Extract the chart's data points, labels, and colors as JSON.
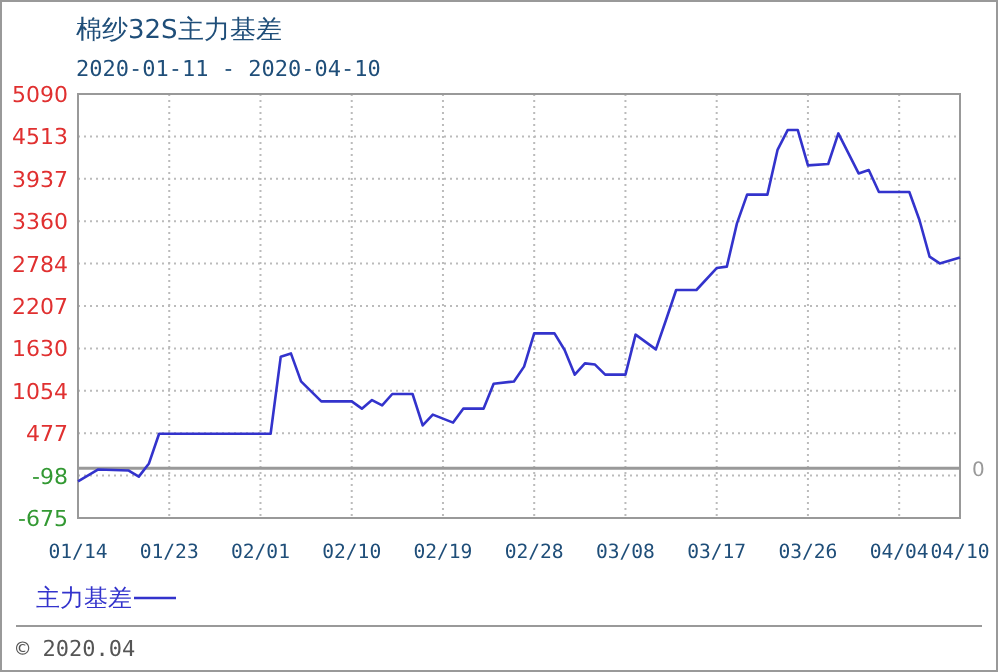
{
  "chart_data": {
    "type": "line",
    "title": "棉纱32S主力基差",
    "subtitle": "2020-01-11 - 2020-04-10",
    "x": [
      "2020-01-14",
      "2020-01-16",
      "2020-01-19",
      "2020-01-20",
      "2020-01-21",
      "2020-01-22",
      "2020-02-02",
      "2020-02-03",
      "2020-02-04",
      "2020-02-05",
      "2020-02-07",
      "2020-02-10",
      "2020-02-11",
      "2020-02-12",
      "2020-02-13",
      "2020-02-14",
      "2020-02-16",
      "2020-02-17",
      "2020-02-18",
      "2020-02-20",
      "2020-02-21",
      "2020-02-23",
      "2020-02-24",
      "2020-02-26",
      "2020-02-27",
      "2020-02-28",
      "2020-03-01",
      "2020-03-02",
      "2020-03-03",
      "2020-03-04",
      "2020-03-05",
      "2020-03-06",
      "2020-03-08",
      "2020-03-09",
      "2020-03-11",
      "2020-03-12",
      "2020-03-13",
      "2020-03-15",
      "2020-03-17",
      "2020-03-18",
      "2020-03-19",
      "2020-03-20",
      "2020-03-22",
      "2020-03-23",
      "2020-03-24",
      "2020-03-25",
      "2020-03-26",
      "2020-03-28",
      "2020-03-29",
      "2020-03-30",
      "2020-03-31",
      "2020-04-01",
      "2020-04-02",
      "2020-04-05",
      "2020-04-06",
      "2020-04-07",
      "2020-04-08",
      "2020-04-10"
    ],
    "series": [
      {
        "name": "主力基差",
        "color": "#3333cc",
        "values": [
          -178,
          -15,
          -30,
          -113,
          67,
          470,
          470,
          1519,
          1563,
          1182,
          910,
          910,
          812,
          929,
          856,
          1011,
          1011,
          584,
          730,
          622,
          812,
          812,
          1150,
          1182,
          1383,
          1835,
          1835,
          1609,
          1274,
          1427,
          1411,
          1274,
          1274,
          1818,
          1617,
          2017,
          2425,
          2425,
          2724,
          2743,
          3331,
          3722,
          3722,
          4329,
          4600,
          4600,
          4119,
          4138,
          4554,
          4282,
          4010,
          4057,
          3757,
          3757,
          3377,
          2879,
          2787,
          2868
        ]
      }
    ],
    "xlim": [
      "2020-01-14",
      "2020-04-10"
    ],
    "xticks": [
      {
        "value": "2020-01-14",
        "label": "01/14"
      },
      {
        "value": "2020-01-23",
        "label": "01/23"
      },
      {
        "value": "2020-02-01",
        "label": "02/01"
      },
      {
        "value": "2020-02-10",
        "label": "02/10"
      },
      {
        "value": "2020-02-19",
        "label": "02/19"
      },
      {
        "value": "2020-02-28",
        "label": "02/28"
      },
      {
        "value": "2020-03-08",
        "label": "03/08"
      },
      {
        "value": "2020-03-17",
        "label": "03/17"
      },
      {
        "value": "2020-03-26",
        "label": "03/26"
      },
      {
        "value": "2020-04-04",
        "label": "04/04"
      },
      {
        "value": "2020-04-10",
        "label": "04/10"
      }
    ],
    "ylim": [
      -675,
      5090
    ],
    "yticks": [
      -675,
      -98,
      477,
      1054,
      1630,
      2207,
      2784,
      3360,
      3937,
      4513,
      5090
    ],
    "grid": true,
    "legend": "bottom left",
    "ref_lines": [
      {
        "axis": "y",
        "value": 0,
        "label": "0",
        "color": "#999999"
      }
    ],
    "annotations": [
      "© 2020.04"
    ]
  }
}
